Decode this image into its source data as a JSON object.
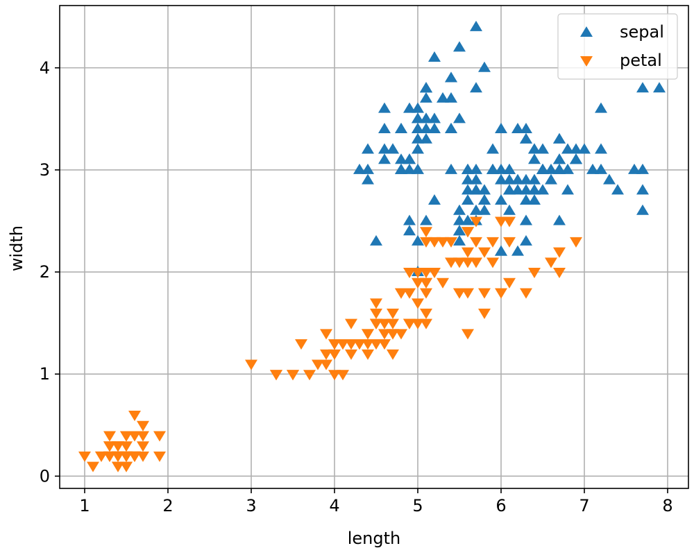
{
  "chart_data": {
    "type": "scatter",
    "title": "",
    "xlabel": "length",
    "ylabel": "width",
    "xlim": [
      0.7,
      8.25
    ],
    "ylim": [
      -0.12,
      4.61
    ],
    "xticks": [
      1,
      2,
      3,
      4,
      5,
      6,
      7,
      8
    ],
    "yticks": [
      0,
      1,
      2,
      3,
      4
    ],
    "grid": true,
    "legend_position": "top-right",
    "series": [
      {
        "name": "sepal",
        "marker": "triangle-up",
        "color": "#1f77b4",
        "points": [
          [
            5.1,
            3.5
          ],
          [
            4.9,
            3.0
          ],
          [
            4.7,
            3.2
          ],
          [
            4.6,
            3.1
          ],
          [
            5.0,
            3.6
          ],
          [
            5.4,
            3.9
          ],
          [
            4.6,
            3.4
          ],
          [
            5.0,
            3.4
          ],
          [
            4.4,
            2.9
          ],
          [
            4.9,
            3.1
          ],
          [
            5.4,
            3.7
          ],
          [
            4.8,
            3.4
          ],
          [
            4.8,
            3.0
          ],
          [
            4.3,
            3.0
          ],
          [
            5.8,
            4.0
          ],
          [
            5.7,
            4.4
          ],
          [
            5.4,
            3.9
          ],
          [
            5.1,
            3.5
          ],
          [
            5.7,
            3.8
          ],
          [
            5.1,
            3.8
          ],
          [
            5.4,
            3.4
          ],
          [
            5.1,
            3.7
          ],
          [
            4.6,
            3.6
          ],
          [
            5.1,
            3.3
          ],
          [
            4.8,
            3.4
          ],
          [
            5.0,
            3.0
          ],
          [
            5.0,
            3.4
          ],
          [
            5.2,
            3.5
          ],
          [
            5.2,
            3.4
          ],
          [
            4.7,
            3.2
          ],
          [
            4.8,
            3.1
          ],
          [
            5.4,
            3.4
          ],
          [
            5.2,
            4.1
          ],
          [
            5.5,
            4.2
          ],
          [
            4.9,
            3.1
          ],
          [
            5.0,
            3.2
          ],
          [
            5.5,
            3.5
          ],
          [
            4.9,
            3.6
          ],
          [
            4.4,
            3.0
          ],
          [
            5.1,
            3.4
          ],
          [
            5.0,
            3.5
          ],
          [
            4.5,
            2.3
          ],
          [
            4.4,
            3.2
          ],
          [
            5.0,
            3.5
          ],
          [
            5.1,
            3.8
          ],
          [
            4.8,
            3.0
          ],
          [
            5.1,
            3.8
          ],
          [
            4.6,
            3.2
          ],
          [
            5.3,
            3.7
          ],
          [
            5.0,
            3.3
          ],
          [
            7.0,
            3.2
          ],
          [
            6.4,
            3.2
          ],
          [
            6.9,
            3.1
          ],
          [
            5.5,
            2.3
          ],
          [
            6.5,
            2.8
          ],
          [
            5.7,
            2.8
          ],
          [
            6.3,
            3.3
          ],
          [
            4.9,
            2.4
          ],
          [
            6.6,
            2.9
          ],
          [
            5.2,
            2.7
          ],
          [
            5.0,
            2.0
          ],
          [
            5.9,
            3.0
          ],
          [
            6.0,
            2.2
          ],
          [
            6.1,
            2.9
          ],
          [
            5.6,
            2.9
          ],
          [
            6.7,
            3.1
          ],
          [
            5.6,
            3.0
          ],
          [
            5.8,
            2.7
          ],
          [
            6.2,
            2.2
          ],
          [
            5.6,
            2.5
          ],
          [
            5.9,
            3.2
          ],
          [
            6.1,
            2.8
          ],
          [
            6.3,
            2.5
          ],
          [
            6.1,
            2.8
          ],
          [
            6.4,
            2.9
          ],
          [
            6.6,
            3.0
          ],
          [
            6.8,
            2.8
          ],
          [
            6.7,
            3.0
          ],
          [
            6.0,
            2.9
          ],
          [
            5.7,
            2.6
          ],
          [
            5.5,
            2.4
          ],
          [
            5.5,
            2.4
          ],
          [
            5.8,
            2.7
          ],
          [
            6.0,
            2.7
          ],
          [
            5.4,
            3.0
          ],
          [
            6.0,
            3.4
          ],
          [
            6.7,
            3.1
          ],
          [
            6.3,
            2.3
          ],
          [
            5.6,
            3.0
          ],
          [
            5.5,
            2.5
          ],
          [
            5.5,
            2.6
          ],
          [
            6.1,
            3.0
          ],
          [
            5.8,
            2.6
          ],
          [
            5.0,
            2.3
          ],
          [
            5.6,
            2.7
          ],
          [
            5.7,
            3.0
          ],
          [
            5.7,
            2.9
          ],
          [
            6.2,
            2.9
          ],
          [
            5.1,
            2.5
          ],
          [
            5.7,
            2.8
          ],
          [
            6.3,
            3.3
          ],
          [
            5.8,
            2.7
          ],
          [
            7.1,
            3.0
          ],
          [
            6.3,
            2.9
          ],
          [
            6.5,
            3.0
          ],
          [
            7.6,
            3.0
          ],
          [
            4.9,
            2.5
          ],
          [
            7.3,
            2.9
          ],
          [
            6.7,
            2.5
          ],
          [
            7.2,
            3.6
          ],
          [
            6.5,
            3.2
          ],
          [
            6.4,
            2.7
          ],
          [
            6.8,
            3.0
          ],
          [
            5.7,
            2.5
          ],
          [
            5.8,
            2.8
          ],
          [
            6.4,
            3.2
          ],
          [
            6.5,
            3.0
          ],
          [
            7.7,
            3.8
          ],
          [
            7.7,
            2.6
          ],
          [
            6.0,
            2.2
          ],
          [
            6.9,
            3.2
          ],
          [
            5.6,
            2.8
          ],
          [
            7.7,
            2.8
          ],
          [
            6.3,
            2.7
          ],
          [
            6.7,
            3.3
          ],
          [
            7.2,
            3.2
          ],
          [
            6.2,
            2.8
          ],
          [
            6.1,
            3.0
          ],
          [
            6.4,
            2.8
          ],
          [
            7.2,
            3.0
          ],
          [
            7.4,
            2.8
          ],
          [
            7.9,
            3.8
          ],
          [
            6.4,
            2.8
          ],
          [
            6.3,
            2.8
          ],
          [
            6.1,
            2.6
          ],
          [
            7.7,
            3.0
          ],
          [
            6.3,
            3.4
          ],
          [
            6.4,
            3.1
          ],
          [
            6.0,
            3.0
          ],
          [
            6.9,
            3.1
          ],
          [
            6.7,
            3.1
          ],
          [
            6.9,
            3.1
          ],
          [
            5.8,
            2.7
          ],
          [
            6.8,
            3.2
          ],
          [
            6.7,
            3.3
          ],
          [
            6.7,
            3.0
          ],
          [
            6.3,
            2.5
          ],
          [
            6.5,
            3.0
          ],
          [
            6.2,
            3.4
          ],
          [
            5.9,
            3.0
          ]
        ]
      },
      {
        "name": "petal",
        "marker": "triangle-down",
        "color": "#ff7f0e",
        "points": [
          [
            1.4,
            0.2
          ],
          [
            1.4,
            0.2
          ],
          [
            1.3,
            0.2
          ],
          [
            1.5,
            0.2
          ],
          [
            1.4,
            0.2
          ],
          [
            1.7,
            0.4
          ],
          [
            1.4,
            0.3
          ],
          [
            1.5,
            0.2
          ],
          [
            1.4,
            0.2
          ],
          [
            1.5,
            0.1
          ],
          [
            1.5,
            0.2
          ],
          [
            1.6,
            0.2
          ],
          [
            1.4,
            0.1
          ],
          [
            1.1,
            0.1
          ],
          [
            1.2,
            0.2
          ],
          [
            1.5,
            0.4
          ],
          [
            1.3,
            0.4
          ],
          [
            1.4,
            0.3
          ],
          [
            1.7,
            0.3
          ],
          [
            1.5,
            0.3
          ],
          [
            1.7,
            0.2
          ],
          [
            1.5,
            0.4
          ],
          [
            1.0,
            0.2
          ],
          [
            1.7,
            0.5
          ],
          [
            1.9,
            0.2
          ],
          [
            1.6,
            0.2
          ],
          [
            1.6,
            0.4
          ],
          [
            1.5,
            0.2
          ],
          [
            1.4,
            0.2
          ],
          [
            1.6,
            0.2
          ],
          [
            1.6,
            0.2
          ],
          [
            1.5,
            0.4
          ],
          [
            1.5,
            0.1
          ],
          [
            1.4,
            0.2
          ],
          [
            1.5,
            0.2
          ],
          [
            1.2,
            0.2
          ],
          [
            1.3,
            0.2
          ],
          [
            1.4,
            0.1
          ],
          [
            1.3,
            0.2
          ],
          [
            1.5,
            0.2
          ],
          [
            1.3,
            0.3
          ],
          [
            1.3,
            0.3
          ],
          [
            1.3,
            0.2
          ],
          [
            1.6,
            0.6
          ],
          [
            1.9,
            0.4
          ],
          [
            1.4,
            0.3
          ],
          [
            1.6,
            0.2
          ],
          [
            1.4,
            0.2
          ],
          [
            1.5,
            0.2
          ],
          [
            1.4,
            0.2
          ],
          [
            4.7,
            1.4
          ],
          [
            4.5,
            1.5
          ],
          [
            4.9,
            1.5
          ],
          [
            4.0,
            1.3
          ],
          [
            4.6,
            1.5
          ],
          [
            4.5,
            1.3
          ],
          [
            4.7,
            1.6
          ],
          [
            3.3,
            1.0
          ],
          [
            4.6,
            1.3
          ],
          [
            3.9,
            1.4
          ],
          [
            3.5,
            1.0
          ],
          [
            4.2,
            1.5
          ],
          [
            4.0,
            1.0
          ],
          [
            4.7,
            1.4
          ],
          [
            3.6,
            1.3
          ],
          [
            4.4,
            1.4
          ],
          [
            4.5,
            1.5
          ],
          [
            4.1,
            1.0
          ],
          [
            4.5,
            1.5
          ],
          [
            3.9,
            1.1
          ],
          [
            4.8,
            1.8
          ],
          [
            4.0,
            1.3
          ],
          [
            4.9,
            1.5
          ],
          [
            4.7,
            1.2
          ],
          [
            4.3,
            1.3
          ],
          [
            4.4,
            1.4
          ],
          [
            4.8,
            1.4
          ],
          [
            5.0,
            1.7
          ],
          [
            4.5,
            1.5
          ],
          [
            3.5,
            1.0
          ],
          [
            3.8,
            1.1
          ],
          [
            3.7,
            1.0
          ],
          [
            3.9,
            1.2
          ],
          [
            5.1,
            1.6
          ],
          [
            4.5,
            1.5
          ],
          [
            4.5,
            1.6
          ],
          [
            4.7,
            1.5
          ],
          [
            4.4,
            1.3
          ],
          [
            4.1,
            1.3
          ],
          [
            4.0,
            1.3
          ],
          [
            4.4,
            1.2
          ],
          [
            4.6,
            1.4
          ],
          [
            4.0,
            1.2
          ],
          [
            3.3,
            1.0
          ],
          [
            4.2,
            1.3
          ],
          [
            4.2,
            1.2
          ],
          [
            4.2,
            1.3
          ],
          [
            4.3,
            1.3
          ],
          [
            3.0,
            1.1
          ],
          [
            4.1,
            1.3
          ],
          [
            6.0,
            2.5
          ],
          [
            5.1,
            1.9
          ],
          [
            5.9,
            2.1
          ],
          [
            5.6,
            1.8
          ],
          [
            5.8,
            2.2
          ],
          [
            6.6,
            2.1
          ],
          [
            4.5,
            1.7
          ],
          [
            6.3,
            1.8
          ],
          [
            5.8,
            1.8
          ],
          [
            6.1,
            2.5
          ],
          [
            5.1,
            2.0
          ],
          [
            5.3,
            1.9
          ],
          [
            5.5,
            2.1
          ],
          [
            5.0,
            2.0
          ],
          [
            5.1,
            2.4
          ],
          [
            5.3,
            2.3
          ],
          [
            5.5,
            1.8
          ],
          [
            6.7,
            2.2
          ],
          [
            6.9,
            2.3
          ],
          [
            5.0,
            1.5
          ],
          [
            5.7,
            2.3
          ],
          [
            4.9,
            2.0
          ],
          [
            6.7,
            2.0
          ],
          [
            4.9,
            1.8
          ],
          [
            5.7,
            2.1
          ],
          [
            6.0,
            1.8
          ],
          [
            4.8,
            1.8
          ],
          [
            4.9,
            1.8
          ],
          [
            5.6,
            2.1
          ],
          [
            5.8,
            1.6
          ],
          [
            6.1,
            1.9
          ],
          [
            6.4,
            2.0
          ],
          [
            5.6,
            2.2
          ],
          [
            5.1,
            1.5
          ],
          [
            5.6,
            1.4
          ],
          [
            6.1,
            2.3
          ],
          [
            5.6,
            2.4
          ],
          [
            5.5,
            1.8
          ],
          [
            4.8,
            1.8
          ],
          [
            5.4,
            2.1
          ],
          [
            5.6,
            2.4
          ],
          [
            5.1,
            2.3
          ],
          [
            5.1,
            1.9
          ],
          [
            5.9,
            2.3
          ],
          [
            5.7,
            2.5
          ],
          [
            5.2,
            2.3
          ],
          [
            5.0,
            1.9
          ],
          [
            5.2,
            2.0
          ],
          [
            5.4,
            2.3
          ],
          [
            5.1,
            1.8
          ]
        ]
      }
    ]
  }
}
